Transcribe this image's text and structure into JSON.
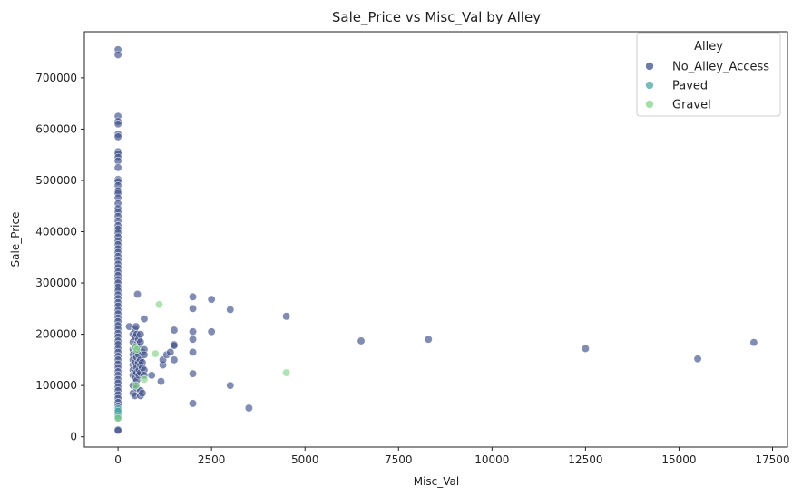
{
  "chart_data": {
    "type": "scatter",
    "title": "Sale_Price vs Misc_Val by Alley",
    "xlabel": "Misc_Val",
    "ylabel": "Sale_Price",
    "xlim": [
      -900,
      17900
    ],
    "ylim": [
      -20000,
      790000
    ],
    "xticks": [
      0,
      2500,
      5000,
      7500,
      10000,
      12500,
      15000,
      17500
    ],
    "yticks": [
      0,
      100000,
      200000,
      300000,
      400000,
      500000,
      600000,
      700000
    ],
    "grid": false,
    "legend": {
      "title": "Alley",
      "placement": "top-right"
    },
    "series": [
      {
        "name": "No_Alley_Access",
        "color": "#3e4f88",
        "points": [
          [
            0,
            755000
          ],
          [
            0,
            745000
          ],
          [
            0,
            625000
          ],
          [
            0,
            615000
          ],
          [
            0,
            610000
          ],
          [
            0,
            590000
          ],
          [
            0,
            585000
          ],
          [
            0,
            556000
          ],
          [
            0,
            552000
          ],
          [
            0,
            545000
          ],
          [
            0,
            538000
          ],
          [
            0,
            525000
          ],
          [
            0,
            502000
          ],
          [
            0,
            498000
          ],
          [
            0,
            490000
          ],
          [
            0,
            480000
          ],
          [
            0,
            475000
          ],
          [
            0,
            466000
          ],
          [
            0,
            455000
          ],
          [
            0,
            445000
          ],
          [
            0,
            438000
          ],
          [
            0,
            430000
          ],
          [
            0,
            421000
          ],
          [
            0,
            412000
          ],
          [
            0,
            405000
          ],
          [
            0,
            398000
          ],
          [
            0,
            390000
          ],
          [
            0,
            382000
          ],
          [
            0,
            375000
          ],
          [
            0,
            367000
          ],
          [
            0,
            360000
          ],
          [
            0,
            352000
          ],
          [
            0,
            345000
          ],
          [
            0,
            337000
          ],
          [
            0,
            330000
          ],
          [
            0,
            322000
          ],
          [
            0,
            315000
          ],
          [
            0,
            307000
          ],
          [
            0,
            300000
          ],
          [
            0,
            292000
          ],
          [
            0,
            285000
          ],
          [
            0,
            277000
          ],
          [
            0,
            270000
          ],
          [
            0,
            262000
          ],
          [
            0,
            255000
          ],
          [
            0,
            247000
          ],
          [
            0,
            240000
          ],
          [
            0,
            232000
          ],
          [
            0,
            225000
          ],
          [
            0,
            217000
          ],
          [
            0,
            210000
          ],
          [
            0,
            202000
          ],
          [
            0,
            195000
          ],
          [
            0,
            187000
          ],
          [
            0,
            180000
          ],
          [
            0,
            172000
          ],
          [
            0,
            165000
          ],
          [
            0,
            157000
          ],
          [
            0,
            150000
          ],
          [
            0,
            142000
          ],
          [
            0,
            135000
          ],
          [
            0,
            127000
          ],
          [
            0,
            120000
          ],
          [
            0,
            112000
          ],
          [
            0,
            105000
          ],
          [
            0,
            97000
          ],
          [
            0,
            90000
          ],
          [
            0,
            82000
          ],
          [
            0,
            75000
          ],
          [
            0,
            67000
          ],
          [
            0,
            60000
          ],
          [
            0,
            52000
          ],
          [
            0,
            45000
          ],
          [
            0,
            37000
          ],
          [
            0,
            14000
          ],
          [
            0,
            12500
          ],
          [
            300,
            215000
          ],
          [
            400,
            200000
          ],
          [
            400,
            185000
          ],
          [
            400,
            170000
          ],
          [
            400,
            160000
          ],
          [
            400,
            150000
          ],
          [
            400,
            140000
          ],
          [
            400,
            130000
          ],
          [
            400,
            120000
          ],
          [
            400,
            100000
          ],
          [
            400,
            85000
          ],
          [
            450,
            210000
          ],
          [
            450,
            195000
          ],
          [
            450,
            175000
          ],
          [
            450,
            145000
          ],
          [
            450,
            125000
          ],
          [
            450,
            115000
          ],
          [
            450,
            80000
          ],
          [
            480,
            215000
          ],
          [
            500,
            200000
          ],
          [
            500,
            180000
          ],
          [
            500,
            165000
          ],
          [
            500,
            155000
          ],
          [
            500,
            140000
          ],
          [
            500,
            135000
          ],
          [
            500,
            125000
          ],
          [
            500,
            110000
          ],
          [
            500,
            95000
          ],
          [
            520,
            278000
          ],
          [
            550,
            190000
          ],
          [
            550,
            175000
          ],
          [
            550,
            160000
          ],
          [
            550,
            145000
          ],
          [
            560,
            130000
          ],
          [
            560,
            120000
          ],
          [
            600,
            200000
          ],
          [
            600,
            185000
          ],
          [
            600,
            150000
          ],
          [
            600,
            140000
          ],
          [
            600,
            125000
          ],
          [
            600,
            90000
          ],
          [
            600,
            80000
          ],
          [
            650,
            165000
          ],
          [
            650,
            145000
          ],
          [
            650,
            135000
          ],
          [
            650,
            85000
          ],
          [
            700,
            230000
          ],
          [
            700,
            170000
          ],
          [
            700,
            160000
          ],
          [
            700,
            130000
          ],
          [
            700,
            120000
          ],
          [
            900,
            120000
          ],
          [
            1150,
            108000
          ],
          [
            1200,
            140000
          ],
          [
            1200,
            150000
          ],
          [
            1300,
            160000
          ],
          [
            1400,
            165000
          ],
          [
            1500,
            208000
          ],
          [
            1500,
            180000
          ],
          [
            1500,
            150000
          ],
          [
            1500,
            178000
          ],
          [
            2000,
            273000
          ],
          [
            2000,
            250000
          ],
          [
            2000,
            205000
          ],
          [
            2000,
            190000
          ],
          [
            2000,
            165000
          ],
          [
            2000,
            123000
          ],
          [
            2000,
            65000
          ],
          [
            2500,
            268000
          ],
          [
            2500,
            205000
          ],
          [
            3000,
            248000
          ],
          [
            3000,
            100000
          ],
          [
            3500,
            56000
          ],
          [
            4500,
            235000
          ],
          [
            6500,
            187000
          ],
          [
            8300,
            190000
          ],
          [
            12500,
            172000
          ],
          [
            15500,
            152000
          ],
          [
            17000,
            184000
          ]
        ]
      },
      {
        "name": "Paved",
        "color": "#4aa8a3",
        "points": [
          [
            0,
            55000
          ],
          [
            0,
            50000
          ],
          [
            0,
            40000
          ]
        ]
      },
      {
        "name": "Gravel",
        "color": "#84d48c",
        "points": [
          [
            0,
            36000
          ],
          [
            450,
            175000
          ],
          [
            480,
            100000
          ],
          [
            500,
            170000
          ],
          [
            700,
            112000
          ],
          [
            1000,
            162000
          ],
          [
            1100,
            258000
          ],
          [
            4500,
            125000
          ]
        ]
      }
    ]
  }
}
